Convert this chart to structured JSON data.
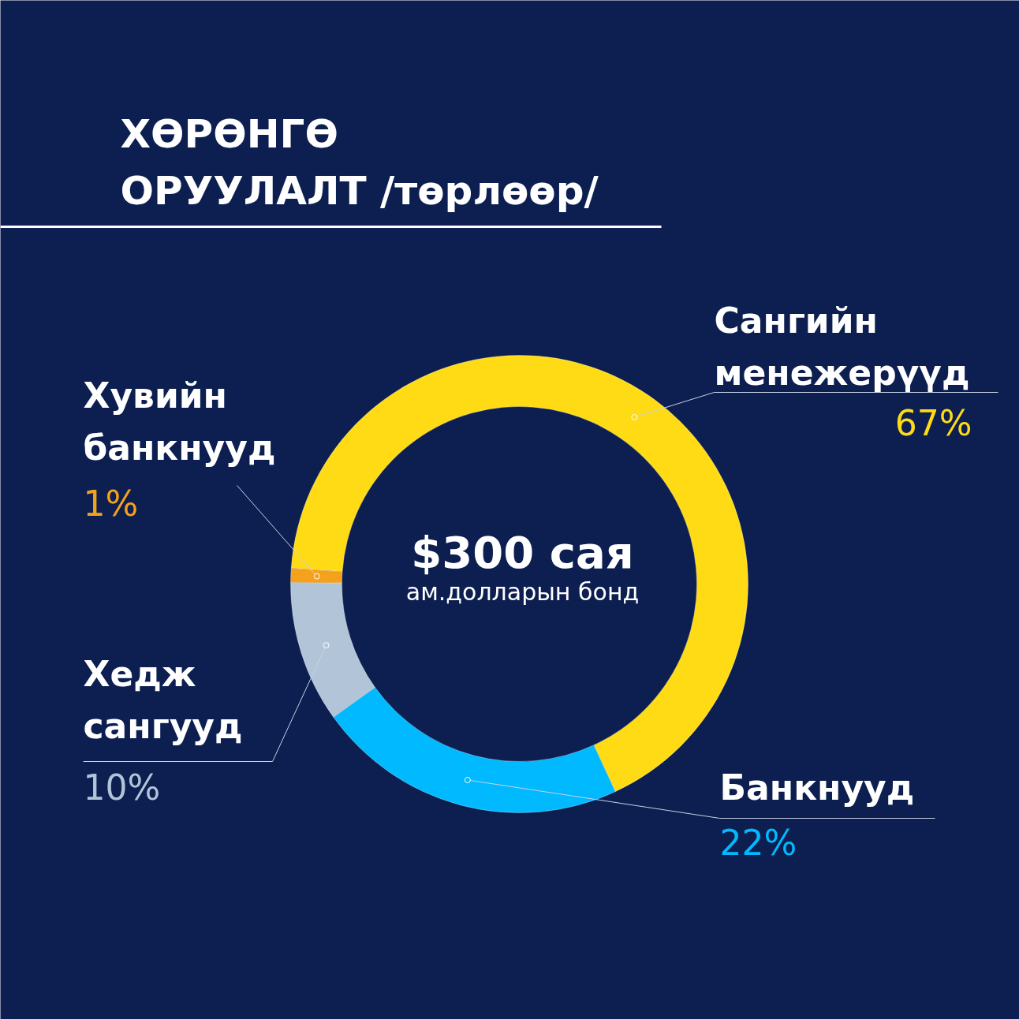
{
  "chart_data": {
    "type": "donut",
    "title": "ХӨРӨНГӨ ОРУУЛАЛТ /төрлөөр/",
    "categories": [
      "Сангийн менежерүүд",
      "Банкнууд",
      "Хедж сангууд",
      "Хувийн банкнууд"
    ],
    "values": [
      67,
      22,
      10,
      1
    ],
    "value_labels": [
      "67%",
      "22%",
      "10%",
      "1%"
    ],
    "colors": [
      "#ffdb16",
      "#00b9ff",
      "#b2c5d8",
      "#f5a11c"
    ],
    "annotations": [
      "$300 сая",
      "ам.долларын бонд"
    ]
  }
}
